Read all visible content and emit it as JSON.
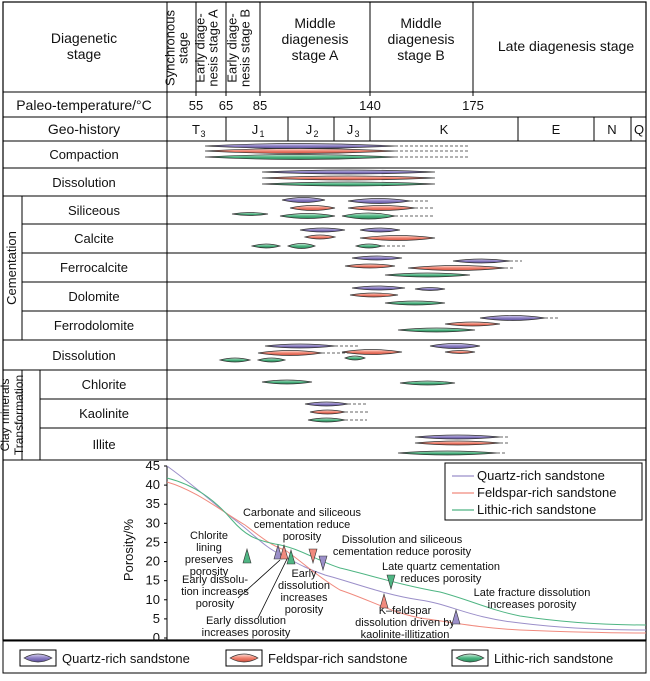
{
  "header": {
    "diagenetic_stage_label": [
      "Diagenetic",
      "stage"
    ],
    "stages": [
      {
        "lines": [
          "Synchronous",
          "stage"
        ],
        "vertical": true
      },
      {
        "lines": [
          "Early diage-",
          "nesis stage A"
        ],
        "vertical": true
      },
      {
        "lines": [
          "Early diage-",
          "nesis stage B"
        ],
        "vertical": true
      },
      {
        "lines": [
          "Middle",
          "diagenesis",
          "stage A"
        ],
        "vertical": false
      },
      {
        "lines": [
          "Middle",
          "diagenesis",
          "stage B"
        ],
        "vertical": false
      },
      {
        "lines": [
          "Late diagenesis stage"
        ],
        "vertical": false
      }
    ],
    "paleo_temperature_label": "Paleo-temperature/°C",
    "temperatures": [
      "55",
      "65",
      "85",
      "140",
      "175"
    ],
    "geo_history_label": "Geo-history",
    "geo_periods": [
      "T3",
      "J1",
      "J2",
      "J3",
      "K",
      "E",
      "N",
      "Q"
    ]
  },
  "rows": {
    "compaction": "Compaction",
    "dissolution_1": "Dissolution",
    "cementation_group": "Cementation",
    "siliceous": "Siliceous",
    "calcite": "Calcite",
    "ferrocalcite": "Ferrocalcite",
    "dolomite": "Dolomite",
    "ferrodolomite": "Ferrodolomite",
    "dissolution_2": "Dissolution",
    "clay_group": [
      "Clay minerals",
      "Transformation"
    ],
    "chlorite": "Chlorite",
    "kaolinite": "Kaolinite",
    "illite": "Illite"
  },
  "porosity_chart": {
    "ylabel": "Porosity/%",
    "yticks": [
      "45",
      "40",
      "35",
      "30",
      "25",
      "20",
      "15",
      "10",
      "5",
      "0"
    ],
    "legend": [
      "Quartz-rich sandstone",
      "Feldspar-rich sandstone",
      "Lithic-rich sandstone"
    ],
    "annotations": {
      "carbonate": [
        "Carbonate and siliceous",
        "cementation reduce",
        "porosity"
      ],
      "chlorite": [
        "Chlorite",
        "lining",
        "preserves",
        "porosity"
      ],
      "dissolution_siliceous": [
        "Dissolution and siliceous",
        "cementation reduce porosity"
      ],
      "early_dissolution_blue": [
        "Early dissolu-",
        "tion increases",
        "porosity"
      ],
      "early_dissolution_green": [
        "Early",
        "dissolution",
        "increases",
        "porosity"
      ],
      "late_quartz": [
        "Late quartz cementation",
        "reduces porosity"
      ],
      "late_fracture": [
        "Late fracture dissolution",
        "increases porosity"
      ],
      "kfeldspar": [
        "K–feldspar",
        "dissolution driven by",
        "kaolinite-illitization"
      ],
      "early_dissolution_red": [
        "Early dissolution",
        "increases porosity"
      ]
    }
  },
  "bottom_legend": [
    "Quartz-rich sandstone",
    "Feldspar-rich sandstone",
    "Lithic-rich sandstone"
  ],
  "colors": {
    "quartz": "#9b8fc9",
    "feldspar": "#f08a7e",
    "lithic": "#4fb583",
    "red_text": "#e0736a",
    "green_text": "#4a9a3a",
    "blue_text": "#2c2c8c"
  }
}
